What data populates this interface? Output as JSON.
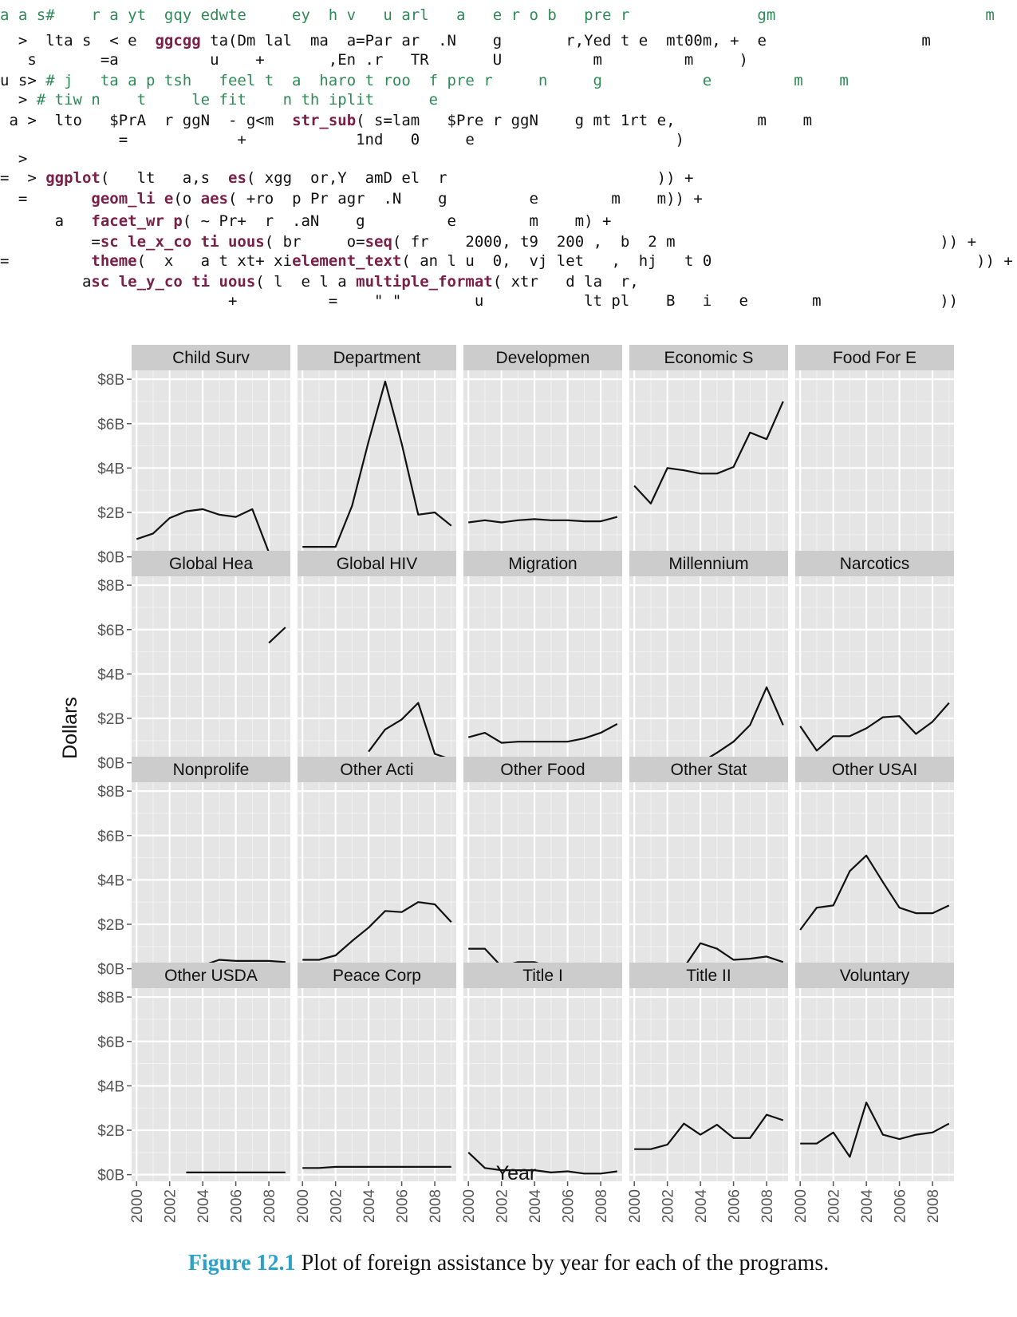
{
  "code_lines": [
    {
      "prompt": "",
      "segments": [
        {
          "t": "a a s#    r a yt  gqy edwte     ey  h v   u arl   a   e r o b   pre r              gm                       m",
          "c": "g"
        }
      ]
    },
    {
      "prompt": "  >",
      "segments": [
        {
          "t": "  lta s  < e  ",
          "c": ""
        },
        {
          "t": "ggcgg",
          "c": "k"
        },
        {
          "t": " ta(Dm lal  ma  a=Par ar  .N    g       r,Yed t e  mt00m, +  e                 m",
          "c": ""
        }
      ]
    },
    {
      "prompt": "",
      "segments": [
        {
          "t": "   s       =a          u    +       ,En .r   TR       U          m         m     )",
          "c": ""
        }
      ]
    },
    {
      "prompt": "u s> ",
      "segments": [
        {
          "t": "# j   ta a p tsh   feel t  a  haro t roo  f pre r     n     g           e         m    m",
          "c": "g"
        }
      ]
    },
    {
      "prompt": "  > ",
      "segments": [
        {
          "t": "# tiw n    t     le fit    n th iplit      e",
          "c": "g"
        }
      ]
    },
    {
      "prompt": " a >",
      "segments": [
        {
          "t": "  lto   $PrA  r ggN  - g<m  ",
          "c": ""
        },
        {
          "t": "str_sub",
          "c": "k"
        },
        {
          "t": "( s=lam   $Pre r ggN    g mt 1rt e,         m    m",
          "c": ""
        }
      ]
    },
    {
      "prompt": "",
      "segments": [
        {
          "t": "             =            +            1nd   0     e                      )",
          "c": ""
        }
      ]
    },
    {
      "prompt": "  >",
      "segments": [
        {
          "t": "",
          "c": ""
        }
      ]
    },
    {
      "prompt": "=  > ",
      "segments": [
        {
          "t": "ggplot",
          "c": "k"
        },
        {
          "t": "(   lt   a,s  ",
          "c": ""
        },
        {
          "t": "es",
          "c": "k"
        },
        {
          "t": "( xgg  or,Y  amD el  r                       )) +",
          "c": ""
        }
      ]
    },
    {
      "prompt": "  =       ",
      "segments": [
        {
          "t": "geom_li e",
          "c": "k"
        },
        {
          "t": "(o ",
          "c": ""
        },
        {
          "t": "aes",
          "c": "k"
        },
        {
          "t": "( +ro  p Pr agr  .N    g         e        m    m)) +",
          "c": ""
        }
      ]
    },
    {
      "prompt": "      a   ",
      "segments": [
        {
          "t": "facet_wr p",
          "c": "k"
        },
        {
          "t": "( ~ Pr+  r  .aN    g         e        m    m) +",
          "c": ""
        }
      ]
    },
    {
      "prompt": "          =",
      "segments": [
        {
          "t": "sc le_x_co ti uous",
          "c": "k"
        },
        {
          "t": "( br     o=",
          "c": ""
        },
        {
          "t": "seq",
          "c": "k"
        },
        {
          "t": "( fr    2000, t9  200 ,  b  2 m                             )) +",
          "c": ""
        }
      ]
    },
    {
      "prompt": "=         ",
      "segments": [
        {
          "t": "theme",
          "c": "k"
        },
        {
          "t": "(  x   a t xt+ xi",
          "c": ""
        },
        {
          "t": "element_text",
          "c": "k"
        },
        {
          "t": "( an l u  0,  vj let   ,  hj   t 0                             )) +",
          "c": ""
        }
      ]
    },
    {
      "prompt": "         a",
      "segments": [
        {
          "t": "sc le_y_co ti uous",
          "c": "k"
        },
        {
          "t": "( l  e l a ",
          "c": ""
        },
        {
          "t": "multiple_format",
          "c": "k"
        },
        {
          "t": "( xtr   d la  r,",
          "c": ""
        }
      ]
    },
    {
      "prompt": "",
      "segments": [
        {
          "t": "                         +          =    \" \"        u           lt pl    B   i   e       m             ))",
          "c": ""
        }
      ]
    }
  ],
  "chart_data": {
    "type": "line",
    "facet": "wrap",
    "ncol": 5,
    "xlabel": "Year",
    "ylabel": "Dollars",
    "ylim": [
      -0.3,
      8.4
    ],
    "xlim": [
      1999.7,
      2009.3
    ],
    "xticks": [
      2000,
      2002,
      2004,
      2006,
      2008
    ],
    "xtick_labels": [
      "2000",
      "2002",
      "2004",
      "2006",
      "2008"
    ],
    "yticks": [
      0,
      2,
      4,
      6,
      8
    ],
    "ytick_labels": [
      "$0B",
      "$2B",
      "$4B",
      "$6B",
      "$8B"
    ],
    "grid": true,
    "panels": [
      {
        "name": "Child Surv",
        "x": [
          2000,
          2001,
          2002,
          2003,
          2004,
          2005,
          2006,
          2007,
          2008,
          2009
        ],
        "y": [
          0.8,
          1.05,
          1.75,
          2.05,
          2.15,
          1.9,
          1.8,
          2.15,
          0.2,
          0.05
        ]
      },
      {
        "name": "Department",
        "x": [
          2000,
          2001,
          2002,
          2003,
          2004,
          2005,
          2006,
          2007,
          2008,
          2009
        ],
        "y": [
          0.45,
          0.45,
          0.45,
          2.3,
          5.2,
          7.9,
          5.1,
          1.9,
          2.0,
          1.4
        ]
      },
      {
        "name": "Developmen",
        "x": [
          2000,
          2001,
          2002,
          2003,
          2004,
          2005,
          2006,
          2007,
          2008,
          2009
        ],
        "y": [
          1.55,
          1.65,
          1.55,
          1.65,
          1.7,
          1.65,
          1.65,
          1.6,
          1.6,
          1.8
        ]
      },
      {
        "name": "Economic S",
        "x": [
          2000,
          2001,
          2002,
          2003,
          2004,
          2005,
          2006,
          2007,
          2008,
          2009
        ],
        "y": [
          3.2,
          2.4,
          4.0,
          3.9,
          3.75,
          3.75,
          4.05,
          5.6,
          5.3,
          7.0
        ]
      },
      {
        "name": "Food For E",
        "x": [
          2000,
          2001,
          2002,
          2003,
          2004,
          2005,
          2006,
          2007,
          2008,
          2009
        ],
        "y": [
          0.15,
          0.05,
          0.05,
          0.05,
          0.05,
          0.1,
          0.08,
          0.07,
          0.0,
          0.05
        ]
      },
      {
        "name": "Global Hea",
        "x": [
          2008,
          2009
        ],
        "y": [
          5.4,
          6.1
        ]
      },
      {
        "name": "Global HIV",
        "x": [
          2004,
          2005,
          2006,
          2007,
          2008,
          2009
        ],
        "y": [
          0.5,
          1.5,
          1.95,
          2.7,
          0.4,
          0.15
        ]
      },
      {
        "name": "Migration",
        "x": [
          2000,
          2001,
          2002,
          2003,
          2004,
          2005,
          2006,
          2007,
          2008,
          2009
        ],
        "y": [
          1.15,
          1.35,
          0.9,
          0.95,
          0.95,
          0.95,
          0.95,
          1.1,
          1.35,
          1.75
        ]
      },
      {
        "name": "Millennium",
        "x": [
          2004,
          2005,
          2006,
          2007,
          2008,
          2009
        ],
        "y": [
          0.0,
          0.45,
          0.95,
          1.7,
          3.4,
          1.7
        ]
      },
      {
        "name": "Narcotics",
        "x": [
          2000,
          2001,
          2002,
          2003,
          2004,
          2005,
          2006,
          2007,
          2008,
          2009
        ],
        "y": [
          1.65,
          0.55,
          1.2,
          1.2,
          1.55,
          2.05,
          2.1,
          1.3,
          1.85,
          2.7
        ]
      },
      {
        "name": "Nonprolife",
        "x": [
          2000,
          2001,
          2002,
          2003,
          2004,
          2005,
          2006,
          2007,
          2008,
          2009
        ],
        "y": [
          0.15,
          0.15,
          0.15,
          0.15,
          0.15,
          0.4,
          0.35,
          0.35,
          0.35,
          0.3
        ]
      },
      {
        "name": "Other Acti",
        "x": [
          2000,
          2001,
          2002,
          2003,
          2004,
          2005,
          2006,
          2007,
          2008,
          2009
        ],
        "y": [
          0.4,
          0.4,
          0.6,
          1.25,
          1.85,
          2.6,
          2.55,
          3.0,
          2.9,
          2.1
        ]
      },
      {
        "name": "Other Food",
        "x": [
          2000,
          2001,
          2002,
          2003,
          2004,
          2005,
          2006,
          2007,
          2008,
          2009
        ],
        "y": [
          0.9,
          0.9,
          0.1,
          0.3,
          0.3,
          0.05,
          0.1,
          0.05,
          0.1,
          0.05
        ]
      },
      {
        "name": "Other Stat",
        "x": [
          2000,
          2001,
          2002,
          2003,
          2004,
          2005,
          2006,
          2007,
          2008,
          2009
        ],
        "y": [
          0.0,
          0.05,
          0.05,
          0.05,
          1.15,
          0.9,
          0.4,
          0.45,
          0.55,
          0.3
        ]
      },
      {
        "name": "Other USAI",
        "x": [
          2000,
          2001,
          2002,
          2003,
          2004,
          2005,
          2006,
          2007,
          2008,
          2009
        ],
        "y": [
          1.75,
          2.75,
          2.85,
          4.4,
          5.1,
          3.9,
          2.75,
          2.5,
          2.5,
          2.85
        ]
      },
      {
        "name": "Other USDA",
        "x": [
          2003,
          2004,
          2005,
          2006,
          2007,
          2008,
          2009
        ],
        "y": [
          0.1,
          0.1,
          0.1,
          0.1,
          0.1,
          0.1,
          0.1
        ]
      },
      {
        "name": "Peace Corp",
        "x": [
          2000,
          2001,
          2002,
          2003,
          2004,
          2005,
          2006,
          2007,
          2008,
          2009
        ],
        "y": [
          0.3,
          0.3,
          0.35,
          0.35,
          0.35,
          0.35,
          0.35,
          0.35,
          0.35,
          0.35
        ]
      },
      {
        "name": "Title I",
        "x": [
          2000,
          2001,
          2002,
          2003,
          2004,
          2005,
          2006,
          2007,
          2008,
          2009
        ],
        "y": [
          1.0,
          0.3,
          0.2,
          0.2,
          0.2,
          0.1,
          0.15,
          0.05,
          0.05,
          0.15
        ]
      },
      {
        "name": "Title II",
        "x": [
          2000,
          2001,
          2002,
          2003,
          2004,
          2005,
          2006,
          2007,
          2008,
          2009
        ],
        "y": [
          1.15,
          1.15,
          1.35,
          2.3,
          1.8,
          2.25,
          1.65,
          1.65,
          2.7,
          2.45
        ]
      },
      {
        "name": "Voluntary",
        "x": [
          2000,
          2001,
          2002,
          2003,
          2004,
          2005,
          2006,
          2007,
          2008,
          2009
        ],
        "y": [
          1.4,
          1.4,
          1.9,
          0.8,
          3.25,
          1.8,
          1.6,
          1.8,
          1.9,
          2.3
        ]
      }
    ]
  },
  "caption": {
    "label": "Figure 12.1",
    "text": " Plot of foreign assistance by year for each of the programs."
  }
}
